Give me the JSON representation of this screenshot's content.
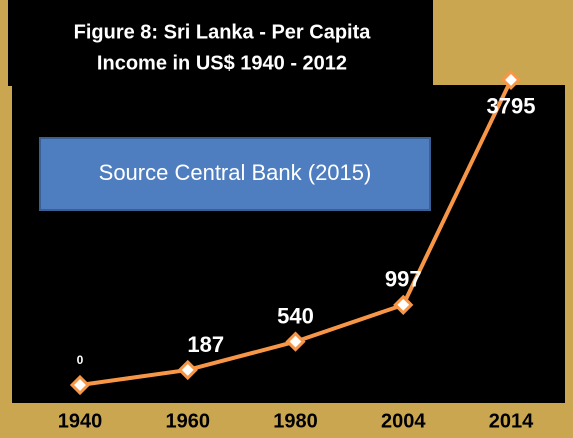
{
  "chart_data": {
    "type": "line",
    "title": [
      "Figure 8: Sri Lanka - Per Capita",
      "Income in US$  1940 - 2012"
    ],
    "annotation": "Source Central Bank (2015)",
    "categories": [
      "1940",
      "1960",
      "1980",
      "2004",
      "2014"
    ],
    "series": [
      {
        "name": "Per Capita Income",
        "color": "#f79646",
        "values": [
          0,
          187,
          540,
          997,
          3795
        ]
      }
    ],
    "ylim": [
      0,
      4000
    ]
  }
}
